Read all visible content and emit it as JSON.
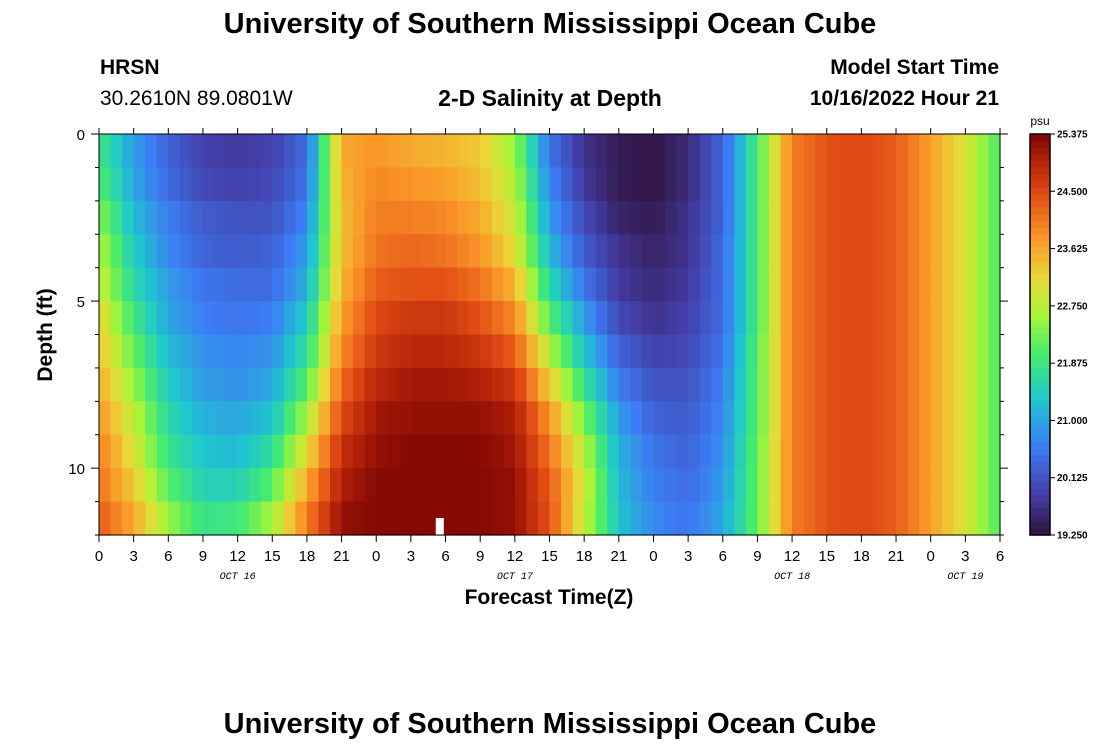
{
  "header": {
    "title": "University of Southern Mississippi Ocean Cube",
    "station": "HRSN",
    "coords": "30.2610N  89.0801W",
    "subtitle": "2-D Salinity at Depth",
    "model_label": "Model Start Time",
    "model_time": "10/16/2022 Hour 21"
  },
  "footer": {
    "title": "University of Southern Mississippi Ocean Cube"
  },
  "chart_data": {
    "type": "heatmap",
    "title": "2-D Salinity at Depth",
    "xlabel": "Forecast Time(Z)",
    "ylabel": "Depth (ft)",
    "x_unit": "hours since Oct 16 00Z",
    "xlim": [
      0,
      78
    ],
    "ylim": [
      0,
      12
    ],
    "y_reversed": true,
    "x_tick_values": [
      0,
      3,
      6,
      9,
      12,
      15,
      18,
      21,
      24,
      27,
      30,
      33,
      36,
      39,
      42,
      45,
      48,
      51,
      54,
      57,
      60,
      63,
      66,
      69,
      72,
      75,
      78
    ],
    "x_tick_labels": [
      "0",
      "3",
      "6",
      "9",
      "12",
      "15",
      "18",
      "21",
      "0",
      "3",
      "6",
      "9",
      "12",
      "15",
      "18",
      "21",
      "0",
      "3",
      "6",
      "9",
      "12",
      "15",
      "18",
      "21",
      "0",
      "3",
      "6"
    ],
    "day_labels": [
      {
        "label": "OCT 16",
        "hour": 12
      },
      {
        "label": "OCT 17",
        "hour": 36
      },
      {
        "label": "OCT 18",
        "hour": 60
      },
      {
        "label": "OCT 19",
        "hour": 75
      }
    ],
    "y_tick_values": [
      0,
      5,
      10
    ],
    "y_tick_labels": [
      "0",
      "5",
      "10"
    ],
    "current_time_marker_hour": 29.5,
    "colorbar": {
      "unit": "psu",
      "min": 19.25,
      "max": 25.375,
      "tick_values": [
        25.375,
        24.5,
        23.625,
        22.75,
        21.875,
        21.0,
        20.125,
        19.25
      ],
      "tick_labels": [
        "25.375",
        "24.500",
        "23.625",
        "22.750",
        "21.875",
        "21.000",
        "20.125",
        "19.250"
      ]
    },
    "depth_levels_ft": [
      0.5,
      1.5,
      2.5,
      3.5,
      4.5,
      5.5,
      6.5,
      7.5,
      8.5,
      9.5,
      10.5,
      11.5
    ],
    "salinity_columns": [
      {
        "hour": 0,
        "values": [
          21.9,
          22.1,
          22.4,
          22.7,
          22.9,
          23.2,
          23.4,
          23.6,
          23.8,
          24.0,
          24.1,
          24.3
        ]
      },
      {
        "hour": 3,
        "values": [
          20.9,
          21.0,
          21.2,
          21.4,
          21.6,
          21.9,
          22.2,
          22.5,
          22.8,
          23.0,
          23.3,
          23.6
        ]
      },
      {
        "hour": 6,
        "values": [
          20.3,
          20.4,
          20.6,
          20.7,
          20.9,
          21.0,
          21.2,
          21.4,
          21.6,
          21.8,
          22.1,
          22.5
        ]
      },
      {
        "hour": 9,
        "values": [
          19.9,
          20.0,
          20.2,
          20.3,
          20.5,
          20.6,
          20.8,
          20.9,
          21.1,
          21.3,
          21.5,
          21.8
        ]
      },
      {
        "hour": 12,
        "values": [
          19.8,
          19.9,
          20.1,
          20.2,
          20.4,
          20.5,
          20.7,
          20.8,
          21.0,
          21.2,
          21.5,
          21.9
        ]
      },
      {
        "hour": 15,
        "values": [
          19.9,
          20.0,
          20.1,
          20.3,
          20.4,
          20.6,
          20.8,
          21.0,
          21.3,
          21.7,
          22.1,
          22.6
        ]
      },
      {
        "hour": 18,
        "values": [
          20.4,
          20.5,
          20.7,
          20.9,
          21.1,
          21.4,
          21.7,
          22.1,
          22.6,
          23.1,
          23.6,
          24.0
        ]
      },
      {
        "hour": 21,
        "values": [
          23.6,
          23.5,
          23.4,
          23.4,
          23.5,
          23.7,
          23.9,
          24.2,
          24.5,
          24.8,
          25.0,
          25.2
        ]
      },
      {
        "hour": 24,
        "values": [
          23.8,
          23.9,
          24.0,
          24.1,
          24.3,
          24.5,
          24.7,
          24.9,
          25.1,
          25.2,
          25.3,
          25.3
        ]
      },
      {
        "hour": 27,
        "values": [
          23.6,
          23.8,
          24.0,
          24.2,
          24.4,
          24.7,
          24.9,
          25.1,
          25.2,
          25.3,
          25.3,
          25.3
        ]
      },
      {
        "hour": 30,
        "values": [
          23.5,
          23.7,
          23.9,
          24.1,
          24.4,
          24.7,
          24.9,
          25.1,
          25.2,
          25.3,
          25.3,
          25.3
        ]
      },
      {
        "hour": 33,
        "values": [
          23.3,
          23.4,
          23.6,
          23.8,
          24.1,
          24.4,
          24.7,
          25.0,
          25.2,
          25.3,
          25.3,
          25.3
        ]
      },
      {
        "hour": 36,
        "values": [
          22.5,
          22.7,
          22.9,
          23.1,
          23.5,
          23.9,
          24.3,
          24.7,
          25.0,
          25.1,
          25.2,
          25.2
        ]
      },
      {
        "hour": 39,
        "values": [
          20.5,
          20.7,
          20.9,
          21.2,
          21.6,
          22.1,
          22.7,
          23.3,
          23.8,
          24.1,
          24.3,
          24.4
        ]
      },
      {
        "hour": 42,
        "values": [
          19.7,
          19.8,
          20.0,
          20.2,
          20.5,
          20.9,
          21.3,
          21.8,
          22.3,
          22.7,
          22.9,
          22.8
        ]
      },
      {
        "hour": 45,
        "values": [
          19.4,
          19.4,
          19.5,
          19.7,
          19.8,
          20.0,
          20.3,
          20.6,
          20.9,
          21.1,
          21.2,
          21.3
        ]
      },
      {
        "hour": 48,
        "values": [
          19.3,
          19.3,
          19.4,
          19.5,
          19.6,
          19.7,
          19.9,
          20.1,
          20.3,
          20.5,
          20.6,
          20.7
        ]
      },
      {
        "hour": 51,
        "values": [
          19.6,
          19.6,
          19.7,
          19.7,
          19.8,
          19.9,
          20.0,
          20.1,
          20.2,
          20.3,
          20.4,
          20.5
        ]
      },
      {
        "hour": 54,
        "values": [
          20.3,
          20.3,
          20.3,
          20.4,
          20.4,
          20.4,
          20.5,
          20.6,
          20.7,
          20.8,
          20.9,
          21.0
        ]
      },
      {
        "hour": 57,
        "values": [
          22.0,
          22.0,
          22.0,
          22.0,
          22.0,
          22.0,
          22.1,
          22.1,
          22.1,
          22.2,
          22.2,
          22.2
        ]
      },
      {
        "hour": 60,
        "values": [
          24.0,
          24.0,
          24.0,
          24.0,
          24.0,
          24.0,
          24.0,
          24.0,
          24.0,
          24.0,
          24.0,
          24.0
        ]
      },
      {
        "hour": 63,
        "values": [
          24.4,
          24.4,
          24.4,
          24.4,
          24.4,
          24.4,
          24.4,
          24.4,
          24.4,
          24.4,
          24.4,
          24.4
        ]
      },
      {
        "hour": 66,
        "values": [
          24.5,
          24.5,
          24.5,
          24.5,
          24.5,
          24.5,
          24.5,
          24.5,
          24.5,
          24.5,
          24.5,
          24.5
        ]
      },
      {
        "hour": 69,
        "values": [
          24.3,
          24.3,
          24.3,
          24.3,
          24.3,
          24.3,
          24.3,
          24.3,
          24.3,
          24.3,
          24.3,
          24.3
        ]
      },
      {
        "hour": 72,
        "values": [
          23.7,
          23.7,
          23.7,
          23.7,
          23.7,
          23.7,
          23.7,
          23.7,
          23.7,
          23.7,
          23.7,
          23.7
        ]
      },
      {
        "hour": 75,
        "values": [
          23.0,
          23.0,
          23.0,
          23.0,
          23.0,
          23.0,
          23.0,
          23.0,
          23.0,
          23.0,
          23.0,
          23.0
        ]
      },
      {
        "hour": 78,
        "values": [
          22.0,
          22.0,
          22.0,
          22.0,
          22.0,
          22.0,
          22.0,
          22.0,
          22.0,
          22.0,
          22.0,
          22.0
        ]
      }
    ]
  }
}
